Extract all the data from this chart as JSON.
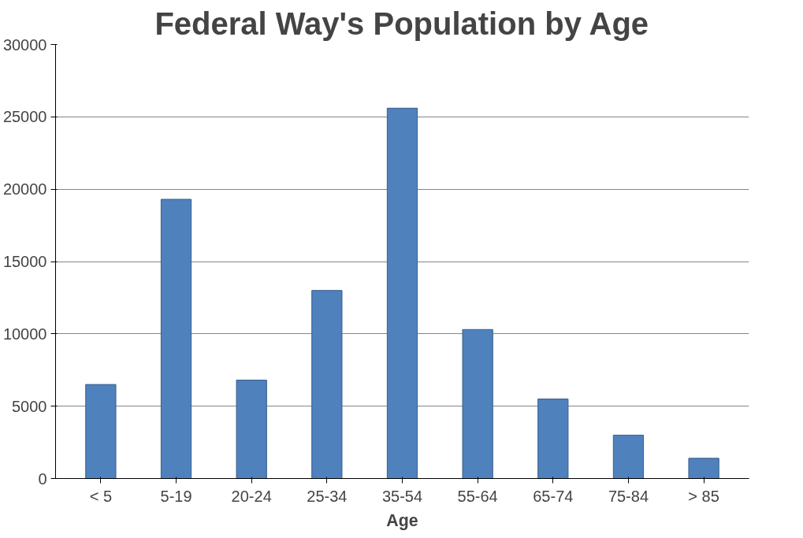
{
  "chart_data": {
    "type": "bar",
    "title": "Federal Way's Population by Age",
    "xlabel": "Age",
    "categories": [
      "< 5",
      "5-19",
      "20-24",
      "25-34",
      "35-54",
      "55-64",
      "65-74",
      "75-84",
      "> 85"
    ],
    "values": [
      6500,
      19300,
      6800,
      13000,
      25600,
      10300,
      5500,
      3000,
      1400
    ],
    "color": "#4f81bd",
    "ylim": [
      0,
      30000
    ],
    "yticks": [
      0,
      5000,
      10000,
      15000,
      20000,
      25000,
      30000
    ],
    "grid": "y"
  }
}
